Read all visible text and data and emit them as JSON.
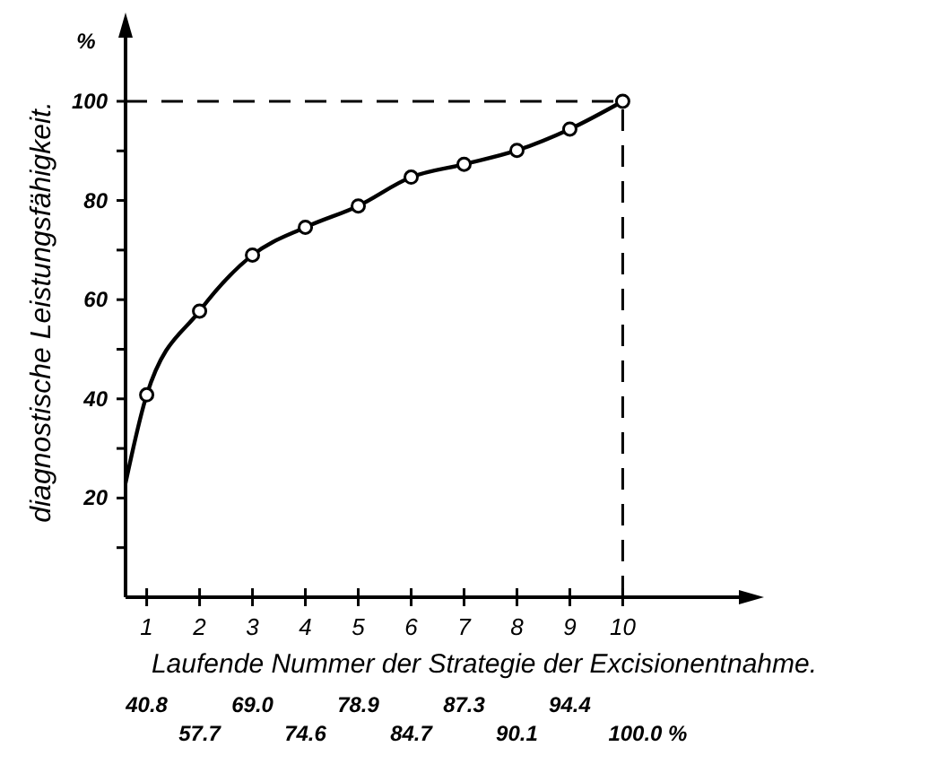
{
  "chart_data": {
    "type": "line",
    "xlabel": "Laufende Nummer der Strategie der Excisionentnahme.",
    "ylabel": "diagnostische Leistungsfähigkeit.",
    "annotations": [
      "%",
      "40.8",
      "57.7",
      "69.0",
      "74.6",
      "78.9",
      "84.7",
      "87.3",
      "90.1",
      "94.4",
      "100.0 %"
    ],
    "xlim": [
      0.6,
      12.4
    ],
    "xticks": [
      1,
      2,
      3,
      4,
      5,
      6,
      7,
      8,
      9,
      10
    ],
    "ylim": [
      0,
      115
    ],
    "yticks": [
      {
        "value": 10,
        "label": null
      },
      20,
      {
        "value": 30,
        "label": null
      },
      40,
      {
        "value": 50,
        "label": null
      },
      60,
      {
        "value": 70,
        "label": null
      },
      80,
      {
        "value": 90,
        "label": null
      },
      100
    ],
    "grid": false,
    "line_style": "solid",
    "series": [
      {
        "color": "#000000",
        "marker": "none",
        "x": [
          0.6,
          1,
          2,
          3,
          4,
          5,
          6,
          7,
          8,
          9,
          10
        ],
        "values": [
          23,
          40.8,
          57.7,
          69.0,
          74.6,
          78.9,
          84.7,
          87.3,
          90.1,
          94.4,
          100.0
        ]
      },
      {
        "type": "scatter",
        "color": "#000000",
        "marker": "circle",
        "x": [
          1,
          2,
          3,
          4,
          5,
          6,
          7,
          8,
          9,
          10
        ],
        "values": [
          40.8,
          57.7,
          69.0,
          74.6,
          78.9,
          84.7,
          87.3,
          90.1,
          94.4,
          100.0
        ]
      }
    ],
    "ref_lines": [
      {
        "axis": "y",
        "value": 100,
        "line_style": "dashed",
        "color": "#000000"
      },
      {
        "axis": "x",
        "value": 10,
        "line_style": "dashed",
        "color": "#000000"
      }
    ]
  }
}
